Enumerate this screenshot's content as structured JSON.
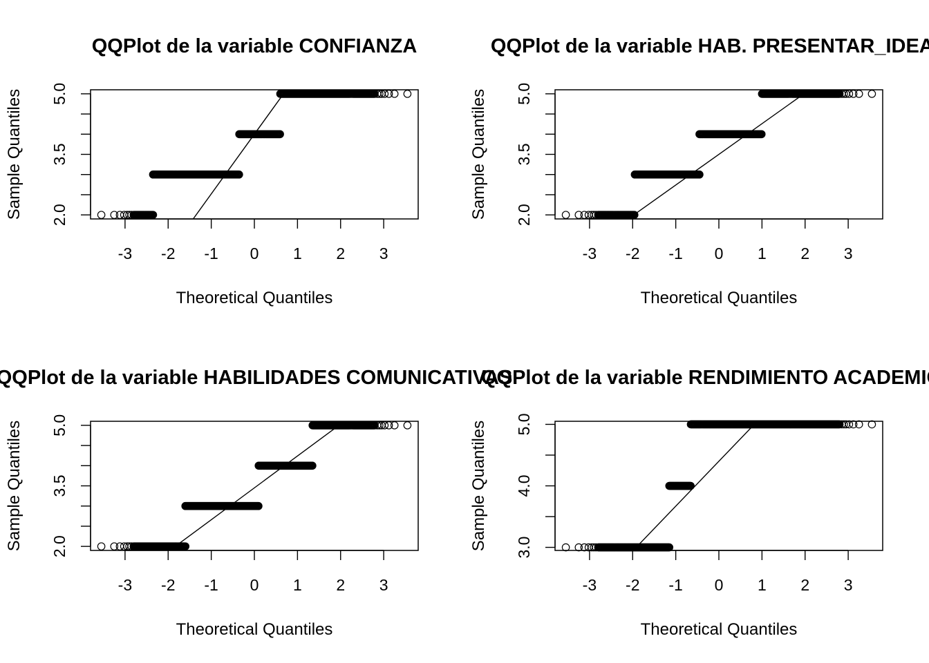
{
  "chart_data": [
    {
      "type": "scatter",
      "title": "QQPlot de la variable CONFIANZA",
      "xlabel": "Theoretical Quantiles",
      "ylabel": "Sample Quantiles",
      "xlim": [
        -3.8,
        3.8
      ],
      "ylim": [
        1.9,
        5.1
      ],
      "xticks": [
        -3,
        -2,
        -1,
        0,
        1,
        2,
        3
      ],
      "yticks": [
        2,
        2.5,
        3,
        3.5,
        4,
        4.5,
        5
      ],
      "ytick_labels": [
        "2.0",
        "",
        "",
        "3.5",
        "",
        "",
        "5.0"
      ],
      "points": [
        {
          "y": 2,
          "x_min": -3.55,
          "x_max": -2.35,
          "dense_from": -2.8
        },
        {
          "y": 3,
          "x_min": -2.35,
          "x_max": -0.35
        },
        {
          "y": 4,
          "x_min": -0.35,
          "x_max": 0.6
        },
        {
          "y": 5,
          "x_min": 0.6,
          "x_max": 3.55,
          "dense_to": 2.8
        }
      ],
      "qqline": {
        "intercept": 4.0,
        "slope": 1.48
      }
    },
    {
      "type": "scatter",
      "title": "QQPlot de la variable HAB. PRESENTAR_IDEAS",
      "xlabel": "Theoretical Quantiles",
      "ylabel": "Sample Quantiles",
      "xlim": [
        -3.8,
        3.8
      ],
      "ylim": [
        1.9,
        5.1
      ],
      "xticks": [
        -3,
        -2,
        -1,
        0,
        1,
        2,
        3
      ],
      "yticks": [
        2,
        2.5,
        3,
        3.5,
        4,
        4.5,
        5
      ],
      "ytick_labels": [
        "2.0",
        "",
        "",
        "3.5",
        "",
        "",
        "5.0"
      ],
      "points": [
        {
          "y": 2,
          "x_min": -3.55,
          "x_max": -1.95,
          "dense_from": -2.8
        },
        {
          "y": 3,
          "x_min": -1.95,
          "x_max": -0.45
        },
        {
          "y": 4,
          "x_min": -0.45,
          "x_max": 1.0
        },
        {
          "y": 5,
          "x_min": 1.0,
          "x_max": 3.55,
          "dense_to": 2.8
        }
      ],
      "qqline": {
        "intercept": 3.5,
        "slope": 0.76
      }
    },
    {
      "type": "scatter",
      "title": "QQPlot de la variable HABILIDADES COMUNICATIVAS",
      "xlabel": "Theoretical Quantiles",
      "ylabel": "Sample Quantiles",
      "xlim": [
        -3.8,
        3.8
      ],
      "ylim": [
        1.9,
        5.1
      ],
      "xticks": [
        -3,
        -2,
        -1,
        0,
        1,
        2,
        3
      ],
      "yticks": [
        2,
        2.5,
        3,
        3.5,
        4,
        4.5,
        5
      ],
      "ytick_labels": [
        "2.0",
        "",
        "",
        "3.5",
        "",
        "",
        "5.0"
      ],
      "points": [
        {
          "y": 2,
          "x_min": -3.55,
          "x_max": -1.6,
          "dense_from": -2.8
        },
        {
          "y": 3,
          "x_min": -1.6,
          "x_max": 0.1
        },
        {
          "y": 4,
          "x_min": 0.1,
          "x_max": 1.35
        },
        {
          "y": 5,
          "x_min": 1.35,
          "x_max": 3.55,
          "dense_to": 2.8
        }
      ],
      "qqline": {
        "intercept": 3.45,
        "slope": 0.79
      }
    },
    {
      "type": "scatter",
      "title": "QQPlot de la variable RENDIMIENTO ACADEMICO",
      "xlabel": "Theoretical Quantiles",
      "ylabel": "Sample Quantiles",
      "xlim": [
        -3.8,
        3.8
      ],
      "ylim": [
        2.95,
        5.05
      ],
      "xticks": [
        -3,
        -2,
        -1,
        0,
        1,
        2,
        3
      ],
      "yticks": [
        3,
        3.5,
        4,
        4.5,
        5
      ],
      "ytick_labels": [
        "3.0",
        "",
        "4.0",
        "",
        "5.0"
      ],
      "points": [
        {
          "y": 3,
          "x_min": -3.55,
          "x_max": -1.15,
          "dense_from": -2.8
        },
        {
          "y": 4,
          "x_min": -1.15,
          "x_max": -0.65
        },
        {
          "y": 5,
          "x_min": -0.65,
          "x_max": 3.55,
          "dense_to": 2.8
        }
      ],
      "qqline": {
        "intercept": 4.4,
        "slope": 0.73
      }
    }
  ]
}
